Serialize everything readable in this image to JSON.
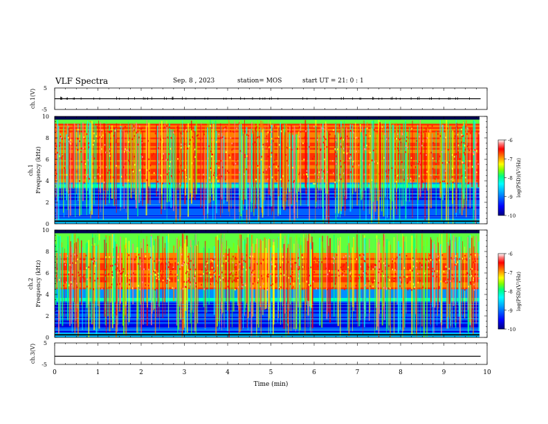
{
  "header": {
    "title": "VLF Spectra",
    "date": "Sep. 8 , 2023",
    "station": "station= MOS",
    "start": "start UT = 21: 0 : 1"
  },
  "chart_data": [
    {
      "type": "line",
      "panel": "ch1-waveform",
      "ylabel": "ch.1(V)",
      "ylim": [
        -5,
        5
      ],
      "yticks": [
        "5",
        "-5"
      ],
      "x": [
        0,
        9.85
      ],
      "values": [
        0,
        0
      ],
      "note_visible": "near-constant trace with small spikes"
    },
    {
      "type": "heatmap",
      "panel": "ch1-spectrogram",
      "ylabel": "ch.1 Frequency (kHz)",
      "ylim": [
        0,
        10
      ],
      "yticks": [
        "0",
        "2",
        "4",
        "6",
        "8",
        "10"
      ],
      "xlim": [
        0,
        10
      ],
      "colorbar": {
        "label": "log(PSD)(V²/Hz)",
        "range": [
          -10,
          -6
        ],
        "ticks": [
          "-6",
          "-7",
          "-8",
          "-9",
          "-10"
        ]
      }
    },
    {
      "type": "heatmap",
      "panel": "ch2-spectrogram",
      "ylabel": "ch.2 Frequency (kHz)",
      "ylim": [
        0,
        10
      ],
      "yticks": [
        "0",
        "2",
        "4",
        "6",
        "8",
        "10"
      ],
      "xlim": [
        0,
        10
      ],
      "colorbar": {
        "label": "log(PSD)(V²/Hz)",
        "range": [
          -10,
          -6
        ],
        "ticks": [
          "-6",
          "-7",
          "-8",
          "-9",
          "-10"
        ]
      }
    },
    {
      "type": "line",
      "panel": "ch3-waveform",
      "ylabel": "ch.3(V)",
      "ylim": [
        -5,
        5
      ],
      "yticks": [
        "5",
        "-5"
      ],
      "x": [
        0,
        9.85
      ],
      "values": [
        -1.2,
        -1.2
      ]
    }
  ],
  "xaxis": {
    "label": "Time (min)",
    "ticks": [
      "0",
      "1",
      "2",
      "3",
      "4",
      "5",
      "6",
      "7",
      "8",
      "9",
      "10"
    ],
    "xlim": [
      0,
      10
    ]
  },
  "colors": {
    "scale": [
      "#000080",
      "#0000ff",
      "#00a0ff",
      "#00ffff",
      "#00ff80",
      "#80ff00",
      "#ffff00",
      "#ff8000",
      "#ff0000",
      "#ff8080",
      "#ffffff"
    ]
  }
}
